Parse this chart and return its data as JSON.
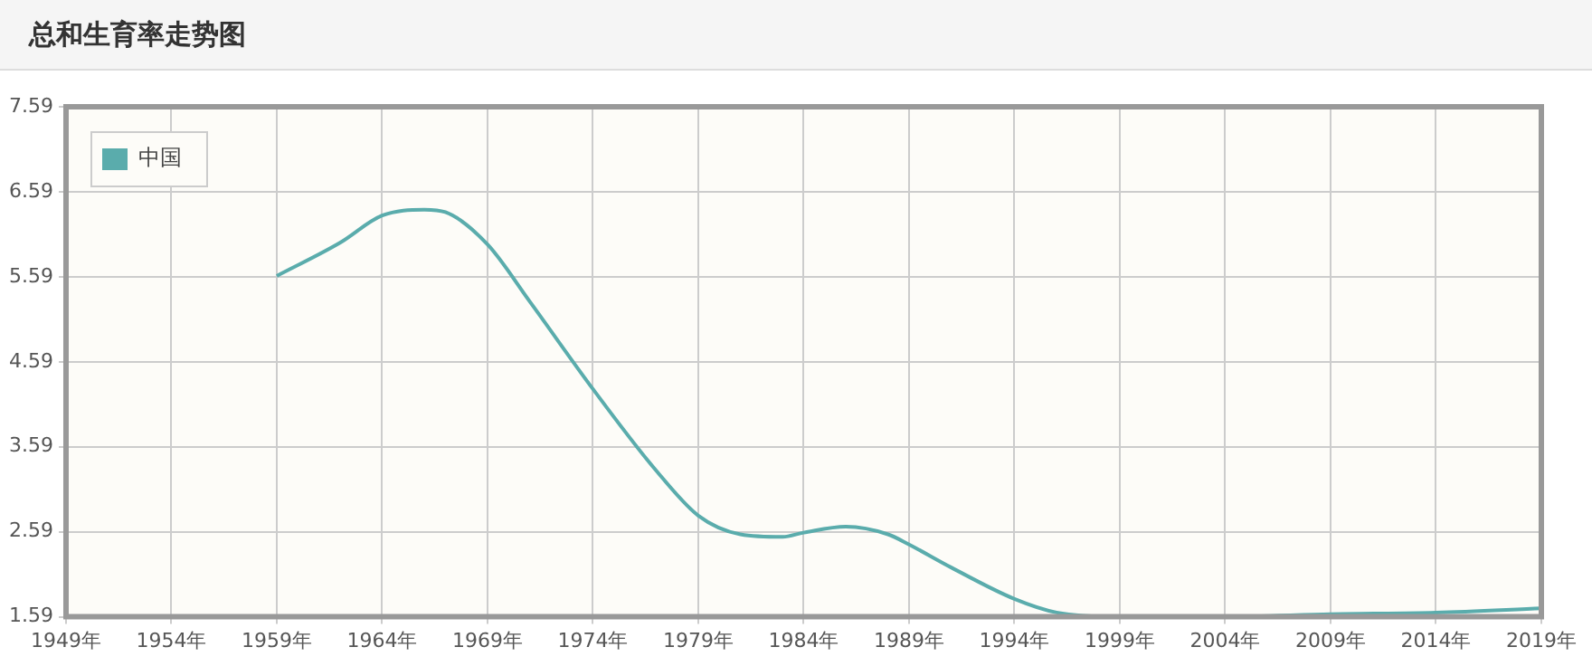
{
  "chart_data": {
    "type": "line",
    "title": "总和生育率走势图",
    "x": [
      1959,
      1962,
      1964,
      1966,
      1967,
      1969,
      1971,
      1974,
      1977,
      1979,
      1981,
      1983,
      1984,
      1986,
      1988,
      1989,
      1991,
      1994,
      1996,
      1999,
      2004,
      2009,
      2014,
      2019
    ],
    "series": [
      {
        "name": "中国",
        "color": "#5aacac",
        "values": [
          5.6,
          5.99,
          6.31,
          6.38,
          6.35,
          5.97,
          5.3,
          4.27,
          3.31,
          2.78,
          2.56,
          2.53,
          2.58,
          2.65,
          2.56,
          2.44,
          2.17,
          1.8,
          1.64,
          1.59,
          1.59,
          1.62,
          1.64,
          1.69
        ]
      }
    ],
    "xlim": [
      1949,
      2019
    ],
    "xticks": [
      {
        "value": 1949,
        "label": "1949年"
      },
      {
        "value": 1954,
        "label": "1954年"
      },
      {
        "value": 1959,
        "label": "1959年"
      },
      {
        "value": 1964,
        "label": "1964年"
      },
      {
        "value": 1969,
        "label": "1969年"
      },
      {
        "value": 1974,
        "label": "1974年"
      },
      {
        "value": 1979,
        "label": "1979年"
      },
      {
        "value": 1984,
        "label": "1984年"
      },
      {
        "value": 1989,
        "label": "1989年"
      },
      {
        "value": 1994,
        "label": "1994年"
      },
      {
        "value": 1999,
        "label": "1999年"
      },
      {
        "value": 2004,
        "label": "2004年"
      },
      {
        "value": 2009,
        "label": "2009年"
      },
      {
        "value": 2014,
        "label": "2014年"
      },
      {
        "value": 2019,
        "label": "2019年"
      }
    ],
    "ylim": [
      1.59,
      7.59
    ],
    "yticks": [
      1.59,
      2.59,
      3.59,
      4.59,
      5.59,
      6.59,
      7.59
    ],
    "grid": true,
    "legend": "top left",
    "marker": "none",
    "line_style": "solid"
  }
}
